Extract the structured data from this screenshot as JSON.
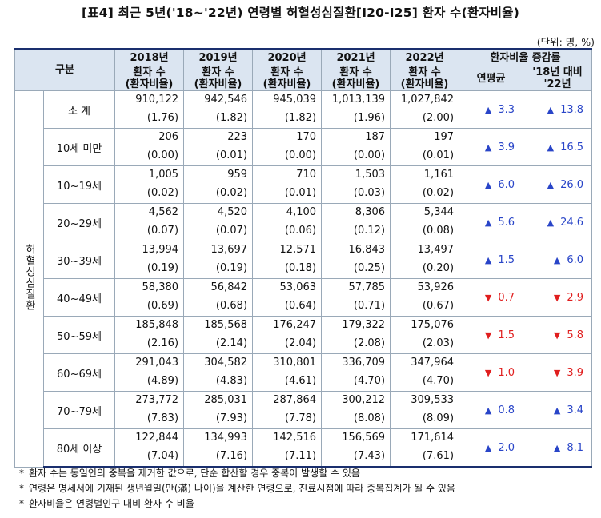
{
  "title": "[표4] 최근 5년('18~'22년) 연령별 허혈성심질환[I20-I25] 환자 수(환자비율)",
  "unit": "(단위: 명, %)",
  "header": {
    "group": "구분",
    "years": [
      "2018년",
      "2019년",
      "2020년",
      "2021년",
      "2022년"
    ],
    "sub_line1": "환자 수",
    "sub_line2": "(환자비율)",
    "change_label": "환자비율 증감률",
    "change_cols": [
      "연평균",
      "'18년 대비 '22년"
    ]
  },
  "disease_label": "허혈성심질환",
  "rows": [
    {
      "label": "소 계",
      "counts": [
        "910,122",
        "942,546",
        "945,039",
        "1,013,139",
        "1,027,842"
      ],
      "ratios": [
        "(1.76)",
        "(1.82)",
        "(1.82)",
        "(1.96)",
        "(2.00)"
      ],
      "annual": "3.3",
      "annual_dir": "up",
      "vs18": "13.8",
      "vs18_dir": "up"
    },
    {
      "label": "10세 미만",
      "counts": [
        "206",
        "223",
        "170",
        "187",
        "197"
      ],
      "ratios": [
        "(0.00)",
        "(0.01)",
        "(0.00)",
        "(0.00)",
        "(0.01)"
      ],
      "annual": "3.9",
      "annual_dir": "up",
      "vs18": "16.5",
      "vs18_dir": "up"
    },
    {
      "label": "10~19세",
      "counts": [
        "1,005",
        "959",
        "710",
        "1,503",
        "1,161"
      ],
      "ratios": [
        "(0.02)",
        "(0.02)",
        "(0.01)",
        "(0.03)",
        "(0.02)"
      ],
      "annual": "6.0",
      "annual_dir": "up",
      "vs18": "26.0",
      "vs18_dir": "up"
    },
    {
      "label": "20~29세",
      "counts": [
        "4,562",
        "4,520",
        "4,100",
        "8,306",
        "5,344"
      ],
      "ratios": [
        "(0.07)",
        "(0.07)",
        "(0.06)",
        "(0.12)",
        "(0.08)"
      ],
      "annual": "5.6",
      "annual_dir": "up",
      "vs18": "24.6",
      "vs18_dir": "up"
    },
    {
      "label": "30~39세",
      "counts": [
        "13,994",
        "13,697",
        "12,571",
        "16,843",
        "13,497"
      ],
      "ratios": [
        "(0.19)",
        "(0.19)",
        "(0.18)",
        "(0.25)",
        "(0.20)"
      ],
      "annual": "1.5",
      "annual_dir": "up",
      "vs18": "6.0",
      "vs18_dir": "up"
    },
    {
      "label": "40~49세",
      "counts": [
        "58,380",
        "56,842",
        "53,063",
        "57,785",
        "53,926"
      ],
      "ratios": [
        "(0.69)",
        "(0.68)",
        "(0.64)",
        "(0.71)",
        "(0.67)"
      ],
      "annual": "0.7",
      "annual_dir": "down",
      "vs18": "2.9",
      "vs18_dir": "down"
    },
    {
      "label": "50~59세",
      "counts": [
        "185,848",
        "185,568",
        "176,247",
        "179,322",
        "175,076"
      ],
      "ratios": [
        "(2.16)",
        "(2.14)",
        "(2.04)",
        "(2.08)",
        "(2.03)"
      ],
      "annual": "1.5",
      "annual_dir": "down",
      "vs18": "5.8",
      "vs18_dir": "down"
    },
    {
      "label": "60~69세",
      "counts": [
        "291,043",
        "304,582",
        "310,801",
        "336,709",
        "347,964"
      ],
      "ratios": [
        "(4.89)",
        "(4.83)",
        "(4.61)",
        "(4.70)",
        "(4.70)"
      ],
      "annual": "1.0",
      "annual_dir": "down",
      "vs18": "3.9",
      "vs18_dir": "down"
    },
    {
      "label": "70~79세",
      "counts": [
        "273,772",
        "285,031",
        "287,864",
        "300,212",
        "309,533"
      ],
      "ratios": [
        "(7.83)",
        "(7.93)",
        "(7.78)",
        "(8.08)",
        "(8.09)"
      ],
      "annual": "0.8",
      "annual_dir": "up",
      "vs18": "3.4",
      "vs18_dir": "up"
    },
    {
      "label": "80세 이상",
      "counts": [
        "122,844",
        "134,993",
        "142,516",
        "156,569",
        "171,614"
      ],
      "ratios": [
        "(7.04)",
        "(7.16)",
        "(7.11)",
        "(7.43)",
        "(7.61)"
      ],
      "annual": "2.0",
      "annual_dir": "up",
      "vs18": "8.1",
      "vs18_dir": "up"
    }
  ],
  "notes": [
    "환자 수는 동일인의 중복을 제거한 값으로, 단순 합산할 경우 중복이 발생할 수 있음",
    "연령은 명세서에 기재된 생년월일(만(滿) 나이)을 계산한 연령으로, 진료시점에 따라 중복집계가 될 수 있음",
    "환자비율은 연령별인구 대비 환자 수 비율"
  ],
  "note_marker": "*",
  "colors": {
    "header_bg": "#dbe5f1",
    "up": "#2945c8",
    "down": "#e01e1e",
    "rule": "#1a2f6e"
  }
}
